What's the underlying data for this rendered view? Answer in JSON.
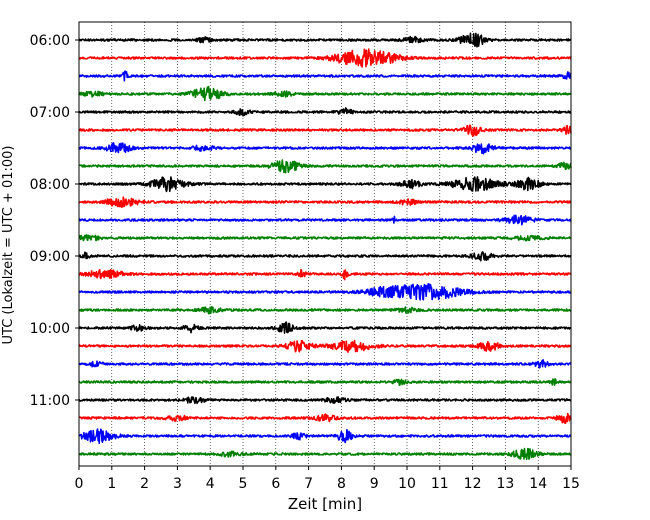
{
  "chart_data": {
    "type": "line",
    "subtype": "seismogram-helicorder",
    "xlabel": "Zeit  [min]",
    "ylabel": "UTC (Lokalzeit = UTC + 01:00)",
    "xlim": [
      0,
      15
    ],
    "x_ticks": [
      0,
      1,
      2,
      3,
      4,
      5,
      6,
      7,
      8,
      9,
      10,
      11,
      12,
      13,
      14,
      15
    ],
    "x_tick_labels": [
      "0",
      "1",
      "2",
      "3",
      "4",
      "5",
      "6",
      "7",
      "8",
      "9",
      "10",
      "11",
      "12",
      "13",
      "14",
      "15"
    ],
    "y_tick_labels": [
      "06:00",
      "07:00",
      "08:00",
      "09:00",
      "10:00",
      "11:00"
    ],
    "grid": "vertical dotted at each minute",
    "legend": "none",
    "trace_colors": [
      "#000000",
      "#ff0000",
      "#0000ff",
      "#008000"
    ],
    "traces": [
      {
        "start": "06:00",
        "color": "black",
        "bursts": [
          {
            "t": 12.0,
            "amp": 0.9,
            "w": 0.35
          },
          {
            "t": 10.2,
            "amp": 0.35,
            "w": 0.3
          },
          {
            "t": 3.8,
            "amp": 0.3,
            "w": 0.2
          }
        ]
      },
      {
        "start": "06:15",
        "color": "red",
        "bursts": [
          {
            "t": 8.5,
            "amp": 1.0,
            "w": 0.7
          },
          {
            "t": 9.3,
            "amp": 0.5,
            "w": 0.6
          }
        ]
      },
      {
        "start": "06:30",
        "color": "blue",
        "bursts": [
          {
            "t": 1.4,
            "amp": 0.55,
            "w": 0.1
          },
          {
            "t": 14.9,
            "amp": 0.4,
            "w": 0.15
          }
        ]
      },
      {
        "start": "06:45",
        "color": "green",
        "bursts": [
          {
            "t": 3.9,
            "amp": 0.85,
            "w": 0.45
          },
          {
            "t": 0.4,
            "amp": 0.35,
            "w": 0.3
          },
          {
            "t": 6.2,
            "amp": 0.3,
            "w": 0.3
          }
        ]
      },
      {
        "start": "07:00",
        "color": "black",
        "bursts": [
          {
            "t": 5.0,
            "amp": 0.5,
            "w": 0.2
          },
          {
            "t": 8.1,
            "amp": 0.45,
            "w": 0.2
          }
        ]
      },
      {
        "start": "07:15",
        "color": "red",
        "bursts": [
          {
            "t": 12.0,
            "amp": 0.65,
            "w": 0.3
          },
          {
            "t": 14.9,
            "amp": 0.5,
            "w": 0.15
          }
        ]
      },
      {
        "start": "07:30",
        "color": "blue",
        "bursts": [
          {
            "t": 1.2,
            "amp": 0.7,
            "w": 0.35
          },
          {
            "t": 12.3,
            "amp": 0.7,
            "w": 0.3
          },
          {
            "t": 3.8,
            "amp": 0.35,
            "w": 0.3
          }
        ]
      },
      {
        "start": "07:45",
        "color": "green",
        "bursts": [
          {
            "t": 6.3,
            "amp": 0.75,
            "w": 0.4
          },
          {
            "t": 14.8,
            "amp": 0.4,
            "w": 0.2
          }
        ]
      },
      {
        "start": "08:00",
        "color": "black",
        "bursts": [
          {
            "t": 2.7,
            "amp": 0.85,
            "w": 0.5
          },
          {
            "t": 12.1,
            "amp": 0.85,
            "w": 0.7
          },
          {
            "t": 13.7,
            "amp": 0.75,
            "w": 0.35
          },
          {
            "t": 10.1,
            "amp": 0.5,
            "w": 0.3
          }
        ]
      },
      {
        "start": "08:15",
        "color": "red",
        "bursts": [
          {
            "t": 1.3,
            "amp": 0.55,
            "w": 0.5
          },
          {
            "t": 10.0,
            "amp": 0.3,
            "w": 0.3
          }
        ]
      },
      {
        "start": "08:30",
        "color": "blue",
        "bursts": [
          {
            "t": 13.4,
            "amp": 0.55,
            "w": 0.4
          },
          {
            "t": 9.6,
            "amp": 0.4,
            "w": 0.05
          }
        ]
      },
      {
        "start": "08:45",
        "color": "green",
        "bursts": [
          {
            "t": 0.3,
            "amp": 0.35,
            "w": 0.3
          },
          {
            "t": 13.7,
            "amp": 0.3,
            "w": 0.4
          }
        ]
      },
      {
        "start": "09:00",
        "color": "black",
        "bursts": [
          {
            "t": 0.2,
            "amp": 0.55,
            "w": 0.1
          },
          {
            "t": 12.3,
            "amp": 0.5,
            "w": 0.3
          }
        ]
      },
      {
        "start": "09:15",
        "color": "red",
        "bursts": [
          {
            "t": 0.8,
            "amp": 0.55,
            "w": 0.5
          },
          {
            "t": 8.1,
            "amp": 0.6,
            "w": 0.1
          },
          {
            "t": 6.8,
            "amp": 0.5,
            "w": 0.1
          }
        ]
      },
      {
        "start": "09:30",
        "color": "blue",
        "bursts": [
          {
            "t": 10.6,
            "amp": 1.0,
            "w": 1.0
          },
          {
            "t": 9.3,
            "amp": 0.45,
            "w": 0.6
          }
        ]
      },
      {
        "start": "09:45",
        "color": "green",
        "bursts": [
          {
            "t": 4.0,
            "amp": 0.35,
            "w": 0.3
          },
          {
            "t": 10.0,
            "amp": 0.3,
            "w": 0.3
          }
        ]
      },
      {
        "start": "10:00",
        "color": "black",
        "bursts": [
          {
            "t": 6.3,
            "amp": 0.65,
            "w": 0.25
          },
          {
            "t": 3.4,
            "amp": 0.5,
            "w": 0.2
          },
          {
            "t": 1.8,
            "amp": 0.35,
            "w": 0.2
          }
        ]
      },
      {
        "start": "10:15",
        "color": "red",
        "bursts": [
          {
            "t": 8.3,
            "amp": 0.75,
            "w": 0.6
          },
          {
            "t": 6.7,
            "amp": 0.7,
            "w": 0.35
          },
          {
            "t": 12.5,
            "amp": 0.6,
            "w": 0.3
          }
        ]
      },
      {
        "start": "10:30",
        "color": "blue",
        "bursts": [
          {
            "t": 14.1,
            "amp": 0.45,
            "w": 0.2
          },
          {
            "t": 0.5,
            "amp": 0.3,
            "w": 0.2
          }
        ]
      },
      {
        "start": "10:45",
        "color": "green",
        "bursts": [
          {
            "t": 14.5,
            "amp": 0.45,
            "w": 0.1
          },
          {
            "t": 9.8,
            "amp": 0.3,
            "w": 0.2
          }
        ]
      },
      {
        "start": "11:00",
        "color": "black",
        "bursts": [
          {
            "t": 3.5,
            "amp": 0.4,
            "w": 0.3
          },
          {
            "t": 7.8,
            "amp": 0.35,
            "w": 0.3
          }
        ]
      },
      {
        "start": "11:15",
        "color": "red",
        "bursts": [
          {
            "t": 14.8,
            "amp": 0.6,
            "w": 0.2
          },
          {
            "t": 7.5,
            "amp": 0.4,
            "w": 0.3
          },
          {
            "t": 3.0,
            "amp": 0.35,
            "w": 0.3
          }
        ]
      },
      {
        "start": "11:30",
        "color": "blue",
        "bursts": [
          {
            "t": 0.6,
            "amp": 0.9,
            "w": 0.45
          },
          {
            "t": 8.1,
            "amp": 0.95,
            "w": 0.2
          },
          {
            "t": 6.7,
            "amp": 0.4,
            "w": 0.2
          }
        ]
      },
      {
        "start": "11:45",
        "color": "green",
        "bursts": [
          {
            "t": 13.6,
            "amp": 0.65,
            "w": 0.35
          },
          {
            "t": 4.6,
            "amp": 0.3,
            "w": 0.3
          }
        ]
      }
    ]
  }
}
